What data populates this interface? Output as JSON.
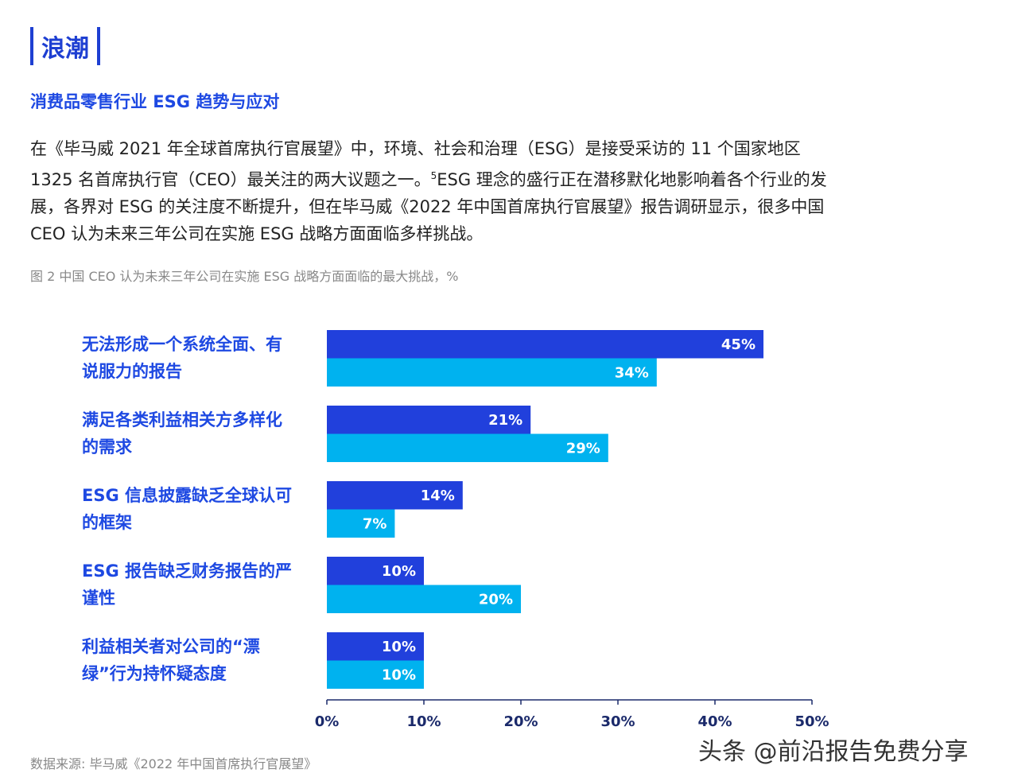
{
  "header": {
    "section": "浪潮",
    "subtitle": "消费品零售行业 ESG 趋势与应对"
  },
  "body": {
    "text_before_note": "在《毕马威 2021 年全球首席执行官展望》中，环境、社会和治理（ESG）是接受采访的 11 个国家地区 1325 名首席执行官（CEO）最关注的两大议题之一。",
    "footnote": "5",
    "text_after_note": "ESG 理念的盛行正在潜移默化地影响着各个行业的发展，各界对 ESG 的关注度不断提升，但在毕马威《2022 年中国首席执行官展望》报告调研显示，很多中国 CEO 认为未来三年公司在实施 ESG 战略方面面临多样挑战。"
  },
  "chart_data": {
    "type": "bar",
    "orientation": "horizontal",
    "title": "图 2 中国 CEO 认为未来三年公司在实施 ESG 战略方面面临的最大挑战，%",
    "categories": [
      "无法形成一个系统全面、有说服力的报告",
      "满足各类利益相关方多样化的需求",
      "ESG 信息披露缺乏全球认可的框架",
      "ESG 报告缺乏财务报告的严谨性",
      "利益相关者对公司的“漂绿”行为持怀疑态度"
    ],
    "series": [
      {
        "color": "#2140dc",
        "values": [
          45,
          21,
          14,
          10,
          10
        ],
        "value_labels": [
          "45%",
          "21%",
          "14%",
          "10%",
          "10%"
        ]
      },
      {
        "color": "#00b2ef",
        "values": [
          34,
          29,
          7,
          20,
          10
        ],
        "value_labels": [
          "34%",
          "29%",
          "7%",
          "20%",
          "10%"
        ]
      }
    ],
    "xlim": [
      0,
      50
    ],
    "xticks": [
      {
        "value": 0,
        "label": "0%"
      },
      {
        "value": 10,
        "label": "10%"
      },
      {
        "value": 20,
        "label": "20%"
      },
      {
        "value": 30,
        "label": "30%"
      },
      {
        "value": 40,
        "label": "40%"
      },
      {
        "value": 50,
        "label": "50%"
      }
    ],
    "grid": false
  },
  "footer": {
    "source": "数据来源: 毕马威《2022 年中国首席执行官展望》",
    "watermark": "头条 @前沿报告免费分享"
  }
}
